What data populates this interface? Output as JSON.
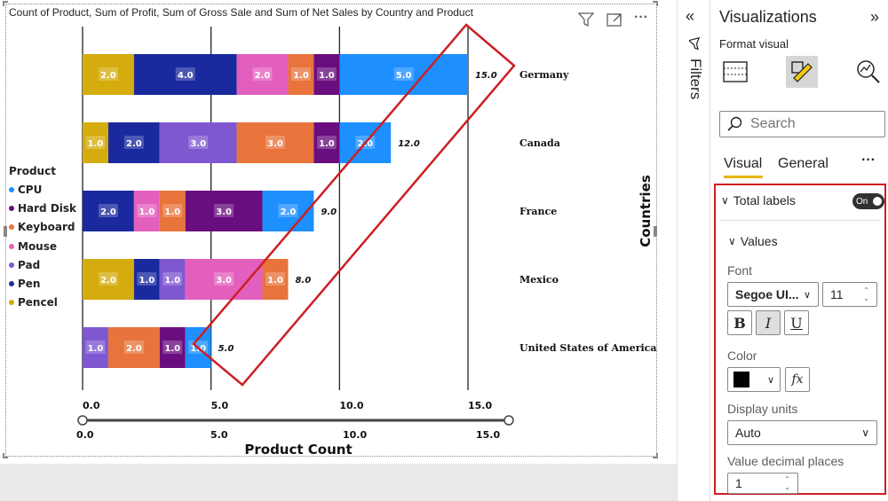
{
  "chart": {
    "title": "Count of Product, Sum of Profit, Sum of Gross Sale and Sum of Net Sales by Country and Product",
    "x_axis_title": "Product Count",
    "y_axis_title": "Countries",
    "x_ticks": [
      "0.0",
      "5.0",
      "10.0",
      "15.0"
    ],
    "slider_ticks": [
      "0.0",
      "5.0",
      "10.0",
      "15.0"
    ],
    "legend_title": "Product"
  },
  "chart_data": {
    "type": "bar",
    "orientation": "horizontal",
    "stacked": true,
    "title": "Count of Product, Sum of Profit, Sum of Gross Sale and Sum of Net Sales by Country and Product",
    "xlabel": "Product Count",
    "ylabel": "Countries",
    "xlim": [
      0,
      15
    ],
    "grid": true,
    "legend_placement": "left",
    "legend": [
      {
        "name": "CPU",
        "color": "#1e8fff"
      },
      {
        "name": "Hard Disk",
        "color": "#6a0d7e"
      },
      {
        "name": "Keyboard",
        "color": "#e8743b"
      },
      {
        "name": "Mouse",
        "color": "#e35fbd"
      },
      {
        "name": "Pad",
        "color": "#7e57d1"
      },
      {
        "name": "Pen",
        "color": "#1a2a9e"
      },
      {
        "name": "Pencel",
        "color": "#d4ac0d"
      }
    ],
    "bars": [
      {
        "country": "Germany",
        "total": "15.0",
        "segments": [
          {
            "product": "Pencel",
            "value": 2.0,
            "label": "2.0"
          },
          {
            "product": "Pen",
            "value": 4.0,
            "label": "4.0"
          },
          {
            "product": "Mouse",
            "value": 2.0,
            "label": "2.0"
          },
          {
            "product": "Keyboard",
            "value": 1.0,
            "label": "1.0"
          },
          {
            "product": "Hard Disk",
            "value": 1.0,
            "label": "1.0"
          },
          {
            "product": "CPU",
            "value": 5.0,
            "label": "5.0"
          }
        ]
      },
      {
        "country": "Canada",
        "total": "12.0",
        "segments": [
          {
            "product": "Pencel",
            "value": 1.0,
            "label": "1.0"
          },
          {
            "product": "Pen",
            "value": 2.0,
            "label": "2.0"
          },
          {
            "product": "Pad",
            "value": 3.0,
            "label": "3.0"
          },
          {
            "product": "Keyboard",
            "value": 3.0,
            "label": "3.0"
          },
          {
            "product": "Hard Disk",
            "value": 1.0,
            "label": "1.0"
          },
          {
            "product": "CPU",
            "value": 2.0,
            "label": "2.0"
          }
        ]
      },
      {
        "country": "France",
        "total": "9.0",
        "segments": [
          {
            "product": "Pen",
            "value": 2.0,
            "label": "2.0"
          },
          {
            "product": "Mouse",
            "value": 1.0,
            "label": "1.0"
          },
          {
            "product": "Keyboard",
            "value": 1.0,
            "label": "1.0"
          },
          {
            "product": "Hard Disk",
            "value": 3.0,
            "label": "3.0"
          },
          {
            "product": "CPU",
            "value": 2.0,
            "label": "2.0"
          }
        ]
      },
      {
        "country": "Mexico",
        "total": "8.0",
        "segments": [
          {
            "product": "Pencel",
            "value": 2.0,
            "label": "2.0"
          },
          {
            "product": "Pen",
            "value": 1.0,
            "label": "1.0"
          },
          {
            "product": "Pad",
            "value": 1.0,
            "label": "1.0"
          },
          {
            "product": "Mouse",
            "value": 3.0,
            "label": "3.0"
          },
          {
            "product": "Keyboard",
            "value": 1.0,
            "label": "1.0"
          }
        ]
      },
      {
        "country": "United States of America",
        "total": "5.0",
        "segments": [
          {
            "product": "Pad",
            "value": 1.0,
            "label": "1.0"
          },
          {
            "product": "Keyboard",
            "value": 2.0,
            "label": "2.0"
          },
          {
            "product": "Hard Disk",
            "value": 1.0,
            "label": "1.0"
          },
          {
            "product": "CPU",
            "value": 1.0,
            "label": "1.0"
          }
        ]
      }
    ]
  },
  "filters": {
    "label": "Filters"
  },
  "viz_pane": {
    "title": "Visualizations",
    "format_visual": "Format visual",
    "search_placeholder": "Search",
    "tabs": [
      "Visual",
      "General"
    ],
    "more": "···",
    "total_labels": {
      "label": "Total labels",
      "toggle": "On"
    },
    "values_label": "Values",
    "font_label": "Font",
    "font_family": "Segoe UI...",
    "font_size": "11",
    "bold": "B",
    "italic": "I",
    "underline": "U",
    "color_label": "Color",
    "fx": "fx",
    "text_color": "#000000",
    "display_units_label": "Display units",
    "display_units_value": "Auto",
    "decimal_places_label": "Value decimal places",
    "decimal_places_value": "1"
  },
  "annotation_color": "#cc1f24"
}
